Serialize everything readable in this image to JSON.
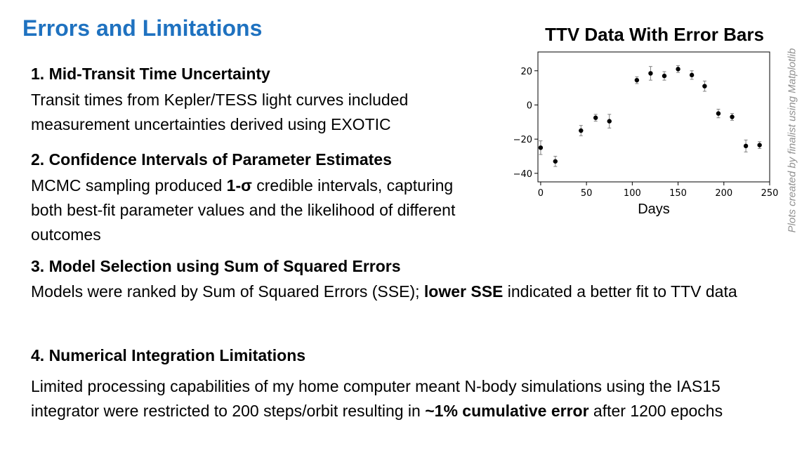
{
  "slide": {
    "title": "Errors and Limitations",
    "credit": "Plots created by finalist using Matplotlib"
  },
  "sections": [
    {
      "heading": "1. Mid-Transit Time Uncertainty",
      "body": [
        {
          "text": "Transit times from Kepler/TESS light curves included measurement uncertainties derived using EXOTIC",
          "bold": false
        }
      ]
    },
    {
      "heading": "2. Confidence Intervals of Parameter Estimates",
      "body": [
        {
          "text": "MCMC sampling produced ",
          "bold": false
        },
        {
          "text": "1-σ",
          "bold": true
        },
        {
          "text": " credible intervals, capturing both best-fit parameter values and the likelihood of different outcomes",
          "bold": false
        }
      ]
    },
    {
      "heading": "3. Model Selection using Sum of Squared Errors",
      "body": [
        {
          "text": "Models were ranked by Sum of Squared Errors (SSE); ",
          "bold": false
        },
        {
          "text": "lower SSE",
          "bold": true
        },
        {
          "text": " indicated a better fit to TTV data",
          "bold": false
        }
      ]
    },
    {
      "heading": "4. Numerical Integration Limitations",
      "body": [
        {
          "text": "Limited processing capabilities of my home computer meant N-body simulations using the IAS15 integrator were restricted to 200 steps/orbit resulting in ",
          "bold": false
        },
        {
          "text": "~1% cumulative error",
          "bold": true
        },
        {
          "text": " after 1200 epochs",
          "bold": false
        }
      ]
    }
  ],
  "chart_data": {
    "type": "scatter",
    "title": "TTV Data With Error Bars",
    "xlabel": "Days",
    "ylabel": "",
    "xlim": [
      -3,
      250
    ],
    "ylim": [
      -45,
      31
    ],
    "xticks": [
      0,
      50,
      100,
      150,
      200,
      250
    ],
    "yticks": [
      -40,
      -20,
      0,
      20
    ],
    "ytick_labels": [
      "−40",
      "−20",
      "0",
      "20"
    ],
    "grid": false,
    "series": [
      {
        "x": [
          0,
          16,
          44,
          60,
          75,
          105,
          120,
          135,
          150,
          165,
          179,
          194,
          209,
          224,
          239
        ],
        "y": [
          -25,
          -33,
          -15,
          -7.5,
          -9.5,
          14.5,
          18.5,
          17,
          21,
          17.5,
          11,
          -5,
          -7,
          -24,
          -23.5
        ],
        "yerr": [
          4,
          3,
          3,
          2,
          4,
          2,
          4,
          2.5,
          2,
          2.5,
          3,
          2.5,
          2,
          3.5,
          2
        ],
        "color": "#000000",
        "errorbar_color": "#808080"
      }
    ]
  }
}
